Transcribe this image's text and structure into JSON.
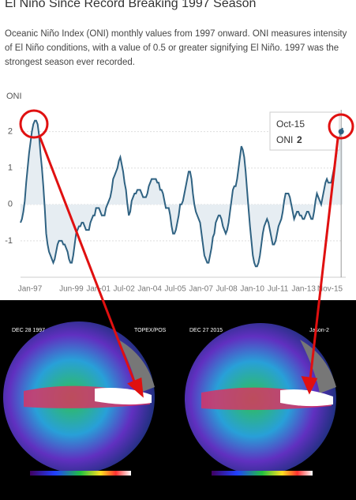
{
  "title": "El Niño Since Record Breaking 1997 Season",
  "description": "Oceanic Niño Index (ONI) monthly values from 1997 onward. ONI measures intensity of El Niño conditions, with a value of 0.5 or greater signifying El Niño. 1997 was the strongest season ever recorded.",
  "chart_data": {
    "type": "area",
    "y_axis_label": "ONI",
    "color": "#2f6282",
    "fill": "#e6edf2",
    "categories": [
      "Jan-97",
      null,
      null,
      null,
      null,
      null,
      null,
      null,
      null,
      null,
      null,
      null,
      null,
      null,
      null,
      null,
      null,
      null,
      null,
      null,
      null,
      null,
      null,
      null,
      null,
      null,
      null,
      null,
      null,
      "Jun-99",
      null,
      null,
      null,
      null,
      null,
      null,
      null,
      null,
      null,
      null,
      null,
      null,
      null,
      null,
      null,
      null,
      null,
      null,
      "Jan-01",
      null,
      null,
      null,
      null,
      null,
      null,
      null,
      null,
      null,
      null,
      null,
      null,
      null,
      null,
      null,
      null,
      null,
      "Jul-02",
      null,
      null,
      null,
      null,
      null,
      null,
      null,
      null,
      null,
      null,
      null,
      null,
      null,
      null,
      null,
      null,
      null,
      "Jan-04",
      null,
      null,
      null,
      null,
      null,
      null,
      null,
      null,
      null,
      null,
      null,
      null,
      null,
      null,
      null,
      null,
      null,
      "Jul-05",
      null,
      null,
      null,
      null,
      null,
      null,
      null,
      null,
      null,
      null,
      null,
      null,
      null,
      null,
      null,
      null,
      null,
      "Jan-07",
      null,
      null,
      null,
      null,
      null,
      null,
      null,
      null,
      null,
      null,
      null,
      null,
      null,
      null,
      null,
      null,
      null,
      "Jul-08",
      null,
      null,
      null,
      null,
      null,
      null,
      null,
      null,
      null,
      null,
      null,
      null,
      null,
      null,
      null,
      null,
      null,
      "Jan-10",
      null,
      null,
      null,
      null,
      null,
      null,
      null,
      null,
      null,
      null,
      null,
      null,
      null,
      null,
      null,
      null,
      null,
      "Jul-11",
      null,
      null,
      null,
      null,
      null,
      null,
      null,
      null,
      null,
      null,
      null,
      null,
      null,
      null,
      null,
      null,
      null,
      "Jan-13",
      null,
      null,
      null,
      null,
      null,
      null,
      null,
      null,
      null,
      null,
      null,
      null,
      null,
      null,
      null,
      null,
      null,
      null,
      null,
      null,
      null,
      null,
      null,
      null,
      null,
      null,
      null,
      null,
      null,
      null,
      null,
      null,
      null,
      "Nov-15"
    ],
    "values": [
      -0.5,
      -0.4,
      -0.2,
      0.1,
      0.6,
      1.0,
      1.4,
      1.7,
      2.0,
      2.2,
      2.3,
      2.3,
      2.2,
      1.9,
      1.4,
      1.0,
      0.5,
      -0.1,
      -0.8,
      -1.1,
      -1.3,
      -1.4,
      -1.5,
      -1.6,
      -1.5,
      -1.3,
      -1.1,
      -1.0,
      -1.0,
      -1.0,
      -1.1,
      -1.1,
      -1.2,
      -1.3,
      -1.5,
      -1.6,
      -1.6,
      -1.4,
      -1.1,
      -0.8,
      -0.7,
      -0.6,
      -0.6,
      -0.5,
      -0.5,
      -0.6,
      -0.7,
      -0.7,
      -0.7,
      -0.5,
      -0.4,
      -0.3,
      -0.3,
      -0.1,
      -0.1,
      -0.1,
      -0.2,
      -0.3,
      -0.3,
      -0.3,
      -0.1,
      0.0,
      0.1,
      0.2,
      0.4,
      0.7,
      0.8,
      0.9,
      1.0,
      1.2,
      1.3,
      1.1,
      0.9,
      0.6,
      0.4,
      0.0,
      -0.3,
      -0.2,
      0.1,
      0.2,
      0.3,
      0.3,
      0.4,
      0.4,
      0.4,
      0.3,
      0.2,
      0.2,
      0.2,
      0.3,
      0.5,
      0.6,
      0.7,
      0.7,
      0.7,
      0.7,
      0.6,
      0.6,
      0.4,
      0.4,
      0.3,
      0.1,
      -0.1,
      -0.1,
      -0.1,
      -0.3,
      -0.6,
      -0.8,
      -0.8,
      -0.7,
      -0.5,
      -0.3,
      0.0,
      0.0,
      0.1,
      0.3,
      0.5,
      0.7,
      0.9,
      0.9,
      0.7,
      0.3,
      0.0,
      -0.2,
      -0.3,
      -0.4,
      -0.5,
      -0.8,
      -1.1,
      -1.4,
      -1.5,
      -1.6,
      -1.6,
      -1.4,
      -1.2,
      -0.9,
      -0.8,
      -0.5,
      -0.4,
      -0.3,
      -0.3,
      -0.4,
      -0.6,
      -0.7,
      -0.8,
      -0.7,
      -0.5,
      -0.2,
      0.1,
      0.4,
      0.5,
      0.5,
      0.7,
      1.0,
      1.3,
      1.6,
      1.5,
      1.3,
      0.9,
      0.4,
      -0.1,
      -0.6,
      -1.0,
      -1.4,
      -1.6,
      -1.7,
      -1.7,
      -1.6,
      -1.4,
      -1.1,
      -0.8,
      -0.6,
      -0.5,
      -0.4,
      -0.5,
      -0.7,
      -0.9,
      -1.1,
      -1.1,
      -1.0,
      -0.8,
      -0.6,
      -0.5,
      -0.4,
      -0.2,
      0.1,
      0.3,
      0.3,
      0.3,
      0.2,
      0.0,
      -0.2,
      -0.4,
      -0.3,
      -0.2,
      -0.2,
      -0.3,
      -0.3,
      -0.4,
      -0.4,
      -0.3,
      -0.2,
      -0.2,
      -0.3,
      -0.4,
      -0.4,
      -0.2,
      0.1,
      0.3,
      0.2,
      0.1,
      0.0,
      0.2,
      0.4,
      0.6,
      0.7,
      0.6,
      0.6,
      0.6,
      0.8,
      1.0,
      1.2,
      1.5,
      1.8,
      1.9,
      2,
      2.1
    ],
    "ylim": [
      -2,
      2.6
    ],
    "yticks": [
      -1,
      0,
      1,
      2
    ],
    "grid": true,
    "tooltip": {
      "category": "Oct-15",
      "series_label": "ONI",
      "value": 2
    }
  },
  "images": [
    {
      "date": "DEC 28 1997",
      "satellite": "TOPEX/POS"
    },
    {
      "date": "DEC 27 2015",
      "satellite": "Jason-2"
    }
  ]
}
